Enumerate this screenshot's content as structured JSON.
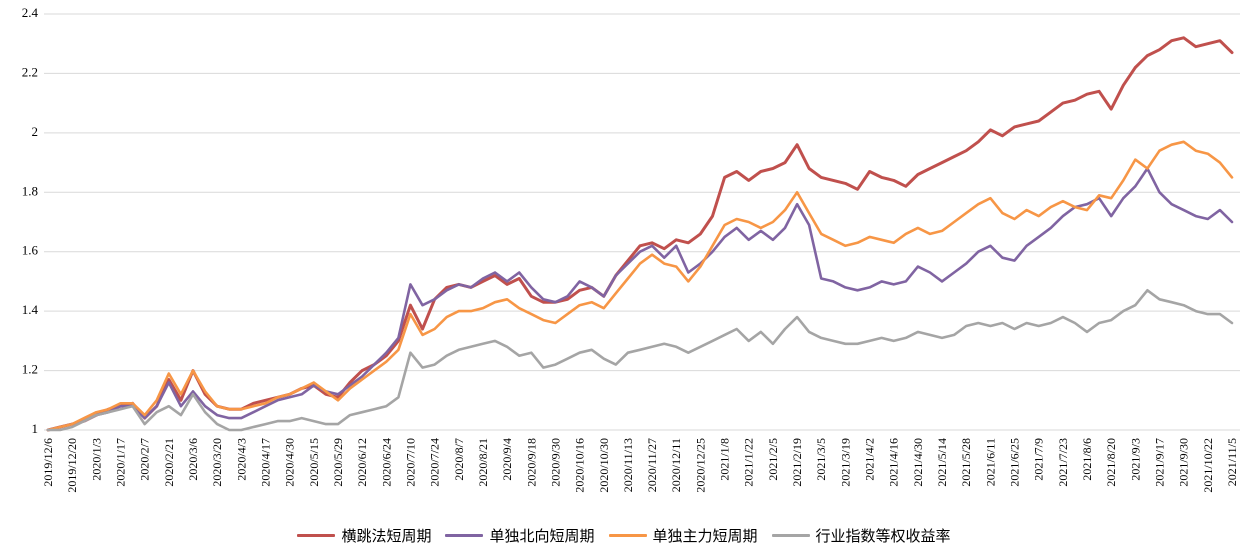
{
  "chart_data": {
    "type": "line",
    "title": "",
    "xlabel": "",
    "ylabel": "",
    "ylim": [
      1,
      2.4
    ],
    "yticks": [
      "1",
      "1.2",
      "1.4",
      "1.6",
      "1.8",
      "2",
      "2.2",
      "2.4"
    ],
    "grid": "horizontal",
    "legend_position": "bottom",
    "x_label_every": 2,
    "x_labels": [
      "2019/12/6",
      "2019/12/20",
      "2020/1/3",
      "2020/1/17",
      "2020/2/7",
      "2020/2/21",
      "2020/3/6",
      "2020/3/20",
      "2020/4/3",
      "2020/4/17",
      "2020/4/30",
      "2020/5/15",
      "2020/5/29",
      "2020/6/12",
      "2020/6/24",
      "2020/7/10",
      "2020/7/24",
      "2020/8/7",
      "2020/8/21",
      "2020/9/4",
      "2020/9/18",
      "2020/9/30",
      "2020/10/16",
      "2020/10/30",
      "2020/11/13",
      "2020/11/27",
      "2020/12/11",
      "2020/12/25",
      "2021/1/8",
      "2021/1/22",
      "2021/2/5",
      "2021/2/19",
      "2021/3/5",
      "2021/3/19",
      "2021/4/2",
      "2021/4/16",
      "2021/4/30",
      "2021/5/14",
      "2021/5/28",
      "2021/6/11",
      "2021/6/25",
      "2021/7/9",
      "2021/7/23",
      "2021/8/6",
      "2021/8/20",
      "2021/9/3",
      "2021/9/17",
      "2021/9/30",
      "2021/10/22",
      "2021/11/5"
    ],
    "series": [
      {
        "name": "横跳法短周期",
        "color": "#C0504D",
        "values": [
          1.0,
          1.01,
          1.02,
          1.03,
          1.05,
          1.07,
          1.08,
          1.09,
          1.04,
          1.08,
          1.17,
          1.1,
          1.2,
          1.12,
          1.08,
          1.07,
          1.07,
          1.09,
          1.1,
          1.11,
          1.12,
          1.14,
          1.15,
          1.12,
          1.11,
          1.16,
          1.2,
          1.22,
          1.25,
          1.3,
          1.42,
          1.34,
          1.44,
          1.48,
          1.49,
          1.48,
          1.5,
          1.52,
          1.49,
          1.51,
          1.45,
          1.43,
          1.43,
          1.44,
          1.47,
          1.48,
          1.45,
          1.52,
          1.57,
          1.62,
          1.63,
          1.61,
          1.64,
          1.63,
          1.66,
          1.72,
          1.85,
          1.87,
          1.84,
          1.87,
          1.88,
          1.9,
          1.96,
          1.88,
          1.85,
          1.84,
          1.83,
          1.81,
          1.87,
          1.85,
          1.84,
          1.82,
          1.86,
          1.88,
          1.9,
          1.92,
          1.94,
          1.97,
          2.01,
          1.99,
          2.02,
          2.03,
          2.04,
          2.07,
          2.1,
          2.11,
          2.13,
          2.14,
          2.08,
          2.16,
          2.22,
          2.26,
          2.28,
          2.31,
          2.32,
          2.29,
          2.3,
          2.31,
          2.27
        ]
      },
      {
        "name": "单独北向短周期",
        "color": "#8064A2",
        "values": [
          1.0,
          1.01,
          1.02,
          1.03,
          1.05,
          1.06,
          1.08,
          1.08,
          1.04,
          1.08,
          1.16,
          1.08,
          1.13,
          1.08,
          1.05,
          1.04,
          1.04,
          1.06,
          1.08,
          1.1,
          1.11,
          1.12,
          1.15,
          1.13,
          1.12,
          1.15,
          1.18,
          1.22,
          1.26,
          1.31,
          1.49,
          1.42,
          1.44,
          1.47,
          1.49,
          1.48,
          1.51,
          1.53,
          1.5,
          1.53,
          1.48,
          1.44,
          1.43,
          1.45,
          1.5,
          1.48,
          1.45,
          1.52,
          1.56,
          1.6,
          1.62,
          1.58,
          1.62,
          1.53,
          1.56,
          1.6,
          1.65,
          1.68,
          1.64,
          1.67,
          1.64,
          1.68,
          1.76,
          1.69,
          1.51,
          1.5,
          1.48,
          1.47,
          1.48,
          1.5,
          1.49,
          1.5,
          1.55,
          1.53,
          1.5,
          1.53,
          1.56,
          1.6,
          1.62,
          1.58,
          1.57,
          1.62,
          1.65,
          1.68,
          1.72,
          1.75,
          1.76,
          1.78,
          1.72,
          1.78,
          1.82,
          1.88,
          1.8,
          1.76,
          1.74,
          1.72,
          1.71,
          1.74,
          1.7
        ]
      },
      {
        "name": "单独主力短周期",
        "color": "#F79646",
        "values": [
          1.0,
          1.01,
          1.02,
          1.04,
          1.06,
          1.07,
          1.09,
          1.09,
          1.05,
          1.1,
          1.19,
          1.12,
          1.2,
          1.13,
          1.08,
          1.07,
          1.07,
          1.08,
          1.09,
          1.11,
          1.12,
          1.14,
          1.16,
          1.13,
          1.1,
          1.14,
          1.17,
          1.2,
          1.23,
          1.27,
          1.39,
          1.32,
          1.34,
          1.38,
          1.4,
          1.4,
          1.41,
          1.43,
          1.44,
          1.41,
          1.39,
          1.37,
          1.36,
          1.39,
          1.42,
          1.43,
          1.41,
          1.46,
          1.51,
          1.56,
          1.59,
          1.56,
          1.55,
          1.5,
          1.55,
          1.62,
          1.69,
          1.71,
          1.7,
          1.68,
          1.7,
          1.74,
          1.8,
          1.73,
          1.66,
          1.64,
          1.62,
          1.63,
          1.65,
          1.64,
          1.63,
          1.66,
          1.68,
          1.66,
          1.67,
          1.7,
          1.73,
          1.76,
          1.78,
          1.73,
          1.71,
          1.74,
          1.72,
          1.75,
          1.77,
          1.75,
          1.74,
          1.79,
          1.78,
          1.84,
          1.91,
          1.88,
          1.94,
          1.96,
          1.97,
          1.94,
          1.93,
          1.9,
          1.85
        ]
      },
      {
        "name": "行业指数等权收益率",
        "color": "#A5A5A5",
        "values": [
          1.0,
          1.0,
          1.01,
          1.03,
          1.05,
          1.06,
          1.07,
          1.08,
          1.02,
          1.06,
          1.08,
          1.05,
          1.12,
          1.06,
          1.02,
          1.0,
          1.0,
          1.01,
          1.02,
          1.03,
          1.03,
          1.04,
          1.03,
          1.02,
          1.02,
          1.05,
          1.06,
          1.07,
          1.08,
          1.11,
          1.26,
          1.21,
          1.22,
          1.25,
          1.27,
          1.28,
          1.29,
          1.3,
          1.28,
          1.25,
          1.26,
          1.21,
          1.22,
          1.24,
          1.26,
          1.27,
          1.24,
          1.22,
          1.26,
          1.27,
          1.28,
          1.29,
          1.28,
          1.26,
          1.28,
          1.3,
          1.32,
          1.34,
          1.3,
          1.33,
          1.29,
          1.34,
          1.38,
          1.33,
          1.31,
          1.3,
          1.29,
          1.29,
          1.3,
          1.31,
          1.3,
          1.31,
          1.33,
          1.32,
          1.31,
          1.32,
          1.35,
          1.36,
          1.35,
          1.36,
          1.34,
          1.36,
          1.35,
          1.36,
          1.38,
          1.36,
          1.33,
          1.36,
          1.37,
          1.4,
          1.42,
          1.47,
          1.44,
          1.43,
          1.42,
          1.4,
          1.39,
          1.39,
          1.36
        ]
      }
    ]
  }
}
